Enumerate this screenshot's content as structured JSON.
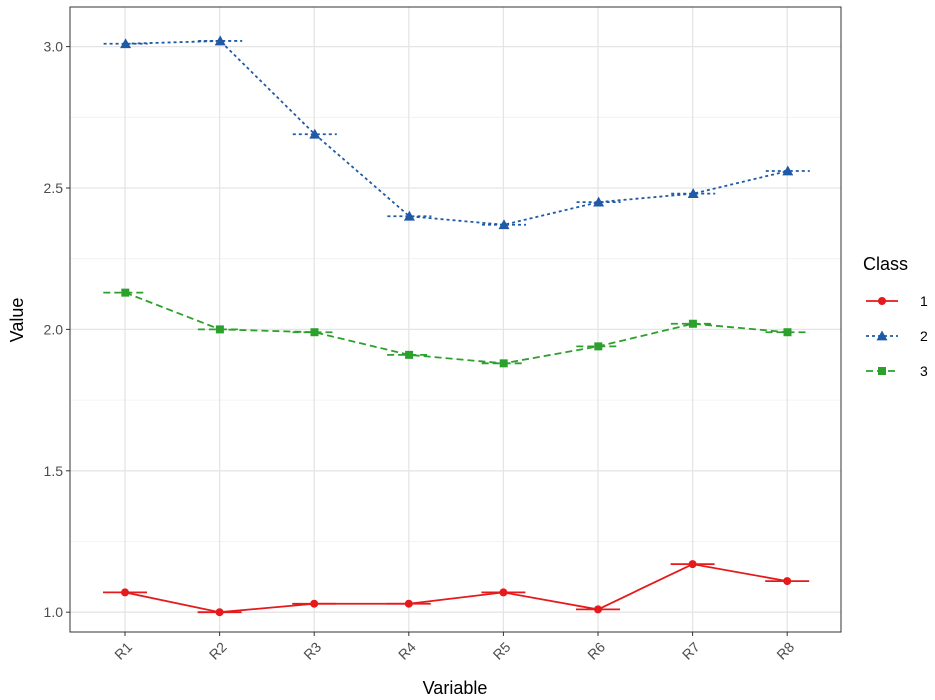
{
  "chart_data": {
    "type": "line",
    "title": "",
    "xlabel": "Variable",
    "ylabel": "Value",
    "categories": [
      "R1",
      "R2",
      "R3",
      "R4",
      "R5",
      "R6",
      "R7",
      "R8"
    ],
    "ylim": [
      0.93,
      3.14
    ],
    "yticks": [
      1.0,
      1.5,
      2.0,
      2.5,
      3.0
    ],
    "ytick_labels": [
      "1.0",
      "1.5",
      "2.0",
      "2.5",
      "3.0"
    ],
    "grid": true,
    "legend": {
      "title": "Class",
      "position": "right"
    },
    "series": [
      {
        "name": "1",
        "color": "#e41a1c",
        "dash": "solid",
        "marker": "circle",
        "values": [
          1.07,
          1.0,
          1.03,
          1.03,
          1.07,
          1.01,
          1.17,
          1.11
        ],
        "err": [
          0.025,
          0.018,
          0.02,
          0.02,
          0.025,
          0.02,
          0.022,
          0.022
        ]
      },
      {
        "name": "2",
        "color": "#1f5aa6",
        "dash": "dotted",
        "marker": "triangle",
        "values": [
          3.01,
          3.02,
          2.69,
          2.4,
          2.37,
          2.45,
          2.48,
          2.56
        ],
        "err": [
          0.04,
          0.04,
          0.035,
          0.035,
          0.035,
          0.035,
          0.035,
          0.04
        ]
      },
      {
        "name": "3",
        "color": "#2ca02c",
        "dash": "dashed",
        "marker": "square",
        "values": [
          2.13,
          2.0,
          1.99,
          1.91,
          1.88,
          1.94,
          2.02,
          1.99
        ],
        "err": [
          0.025,
          0.022,
          0.022,
          0.022,
          0.022,
          0.022,
          0.022,
          0.025
        ]
      }
    ]
  }
}
